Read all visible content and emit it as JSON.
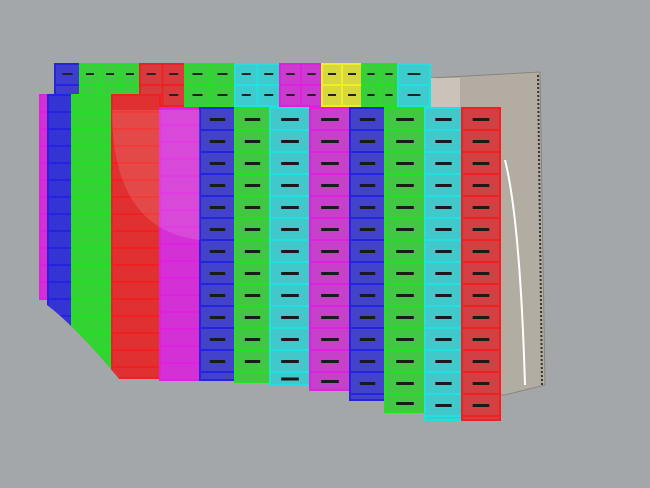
{
  "viewport": {
    "background": "#a4a7aa",
    "palette": {
      "magenta": "#e020e0",
      "blue": "#2424e0",
      "green": "#22e022",
      "red": "#f02020",
      "cyan": "#22e0e0",
      "yellow": "#f0f020",
      "structure": "#b3aca2"
    },
    "back_row_colors": [
      "blue",
      "green",
      "red",
      "green",
      "cyan",
      "magenta",
      "yellow",
      "green",
      "cyan"
    ],
    "front_column_colors": [
      "magenta",
      "blue",
      "green",
      "red",
      "magenta",
      "blue",
      "green",
      "cyan",
      "magenta",
      "blue",
      "green",
      "cyan",
      "red"
    ]
  }
}
